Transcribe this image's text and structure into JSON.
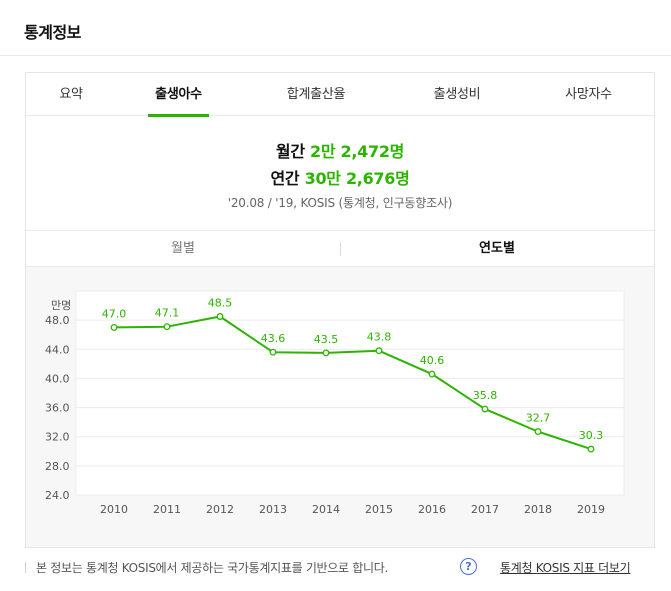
{
  "header": {
    "title": "통계정보"
  },
  "tabs": [
    {
      "label": "요약",
      "active": false
    },
    {
      "label": "출생아수",
      "active": true
    },
    {
      "label": "합계출산율",
      "active": false
    },
    {
      "label": "출생성비",
      "active": false
    },
    {
      "label": "사망자수",
      "active": false
    }
  ],
  "stats": {
    "monthly_prefix": "월간",
    "monthly_value": "2만 2,472명",
    "yearly_prefix": "연간",
    "yearly_value": "30만 2,676명",
    "source": "'20.08 / '19, KOSIS (통계청, 인구동향조사)"
  },
  "period_tabs": {
    "monthly": "월별",
    "yearly": "연도별",
    "selected": "연도별"
  },
  "footer": {
    "notice": "본 정보는 통계청 KOSIS에서 제공하는 국가통계지표를 기반으로 합니다.",
    "help_icon": "question-circle-icon",
    "link": "통계청 KOSIS 지표 더보기"
  },
  "colors": {
    "accent": "#2db400",
    "help": "#4a6fd1"
  },
  "chart_data": {
    "type": "line",
    "title": "",
    "xlabel": "",
    "ylabel": "만명",
    "categories": [
      "2010",
      "2011",
      "2012",
      "2013",
      "2014",
      "2015",
      "2016",
      "2017",
      "2018",
      "2019"
    ],
    "series": [
      {
        "values": [
          47.0,
          47.1,
          48.5,
          43.6,
          43.5,
          43.8,
          40.6,
          35.8,
          32.7,
          30.3
        ]
      }
    ],
    "data_labels": [
      "47.0",
      "47.1",
      "48.5",
      "43.6",
      "43.5",
      "43.8",
      "40.6",
      "35.8",
      "32.7",
      "30.3"
    ],
    "yticks": [
      "24.0",
      "28.0",
      "32.0",
      "36.0",
      "40.0",
      "44.0",
      "48.0"
    ],
    "ylim": [
      24,
      52
    ],
    "grid": true,
    "color": "#2db400"
  }
}
